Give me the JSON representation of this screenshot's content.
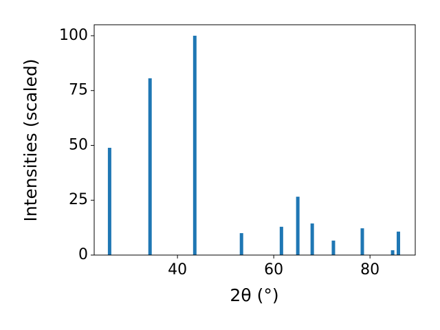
{
  "chart_data": {
    "type": "bar",
    "x": [
      25.9,
      34.3,
      43.6,
      53.3,
      61.6,
      65.0,
      68.0,
      72.4,
      78.4,
      84.7,
      85.9
    ],
    "values": [
      48.9,
      80.6,
      100,
      10.0,
      12.9,
      26.6,
      14.4,
      6.6,
      12.2,
      2.2,
      10.7
    ],
    "color": "#1f77b4",
    "xlabel": "2θ (°)",
    "ylabel": "Intensities (scaled)",
    "xlim": [
      22.7,
      89.4
    ],
    "xticks": [
      40,
      60,
      80
    ],
    "ylim": [
      0,
      105
    ],
    "yticks": [
      0,
      25,
      50,
      75,
      100
    ],
    "grid": false
  }
}
